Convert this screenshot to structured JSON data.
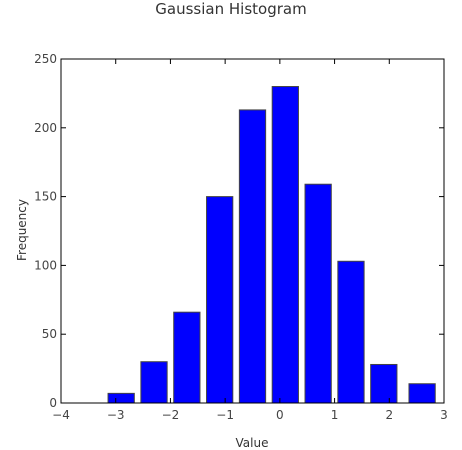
{
  "chart_data": {
    "type": "bar",
    "title": "Gaussian Histogram",
    "xlabel": "Value",
    "ylabel": "Frequency",
    "xlim": [
      -4,
      3
    ],
    "ylim": [
      0,
      250
    ],
    "xticks": [
      -4,
      -3,
      -2,
      -1,
      0,
      1,
      2,
      3
    ],
    "xtick_labels": [
      "−4",
      "−3",
      "−2",
      "−1",
      "0",
      "1",
      "2",
      "3"
    ],
    "yticks": [
      0,
      50,
      100,
      150,
      200,
      250
    ],
    "ytick_labels": [
      "0",
      "50",
      "100",
      "150",
      "200",
      "250"
    ],
    "bin_centers": [
      -2.9,
      -2.3,
      -1.7,
      -1.1,
      -0.5,
      0.1,
      0.7,
      1.3,
      1.9,
      2.6
    ],
    "bin_width": 0.6,
    "values": [
      7,
      30,
      66,
      150,
      213,
      230,
      159,
      103,
      28,
      14
    ],
    "bar_color": "#0000ff",
    "bar_edge_color": "#444444",
    "grid": false
  }
}
